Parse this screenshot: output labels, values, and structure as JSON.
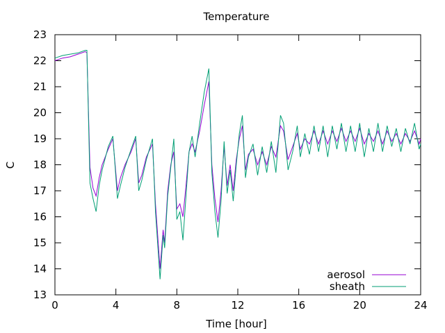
{
  "chart_data": {
    "type": "line",
    "title": "Temperature",
    "xlabel": "Time [hour]",
    "ylabel": "C",
    "xlim": [
      0,
      24
    ],
    "ylim": [
      13,
      23
    ],
    "xticks": [
      0,
      4,
      8,
      12,
      16,
      20,
      24
    ],
    "yticks": [
      13,
      14,
      15,
      16,
      17,
      18,
      19,
      20,
      21,
      22,
      23
    ],
    "grid": false,
    "legend_position": "bottom-right",
    "series": [
      {
        "name": "aerosol",
        "color": "#9400d3",
        "x": [
          0,
          0.5,
          1.0,
          1.5,
          2.0,
          2.1,
          2.3,
          2.5,
          2.7,
          2.9,
          3.1,
          3.5,
          3.8,
          4.1,
          4.3,
          4.6,
          5.0,
          5.3,
          5.5,
          5.7,
          6.0,
          6.4,
          6.6,
          6.9,
          7.1,
          7.2,
          7.4,
          7.6,
          7.8,
          8.0,
          8.2,
          8.4,
          8.6,
          8.8,
          9.0,
          9.2,
          9.5,
          9.8,
          10.1,
          10.3,
          10.5,
          10.7,
          10.9,
          11.1,
          11.3,
          11.5,
          11.7,
          11.9,
          12.1,
          12.3,
          12.5,
          12.7,
          13.0,
          13.3,
          13.6,
          13.9,
          14.2,
          14.5,
          14.8,
          15.0,
          15.3,
          15.6,
          15.9,
          16.1,
          16.4,
          16.7,
          17.0,
          17.3,
          17.6,
          17.9,
          18.2,
          18.5,
          18.8,
          19.1,
          19.4,
          19.7,
          20.0,
          20.3,
          20.6,
          20.9,
          21.2,
          21.5,
          21.8,
          22.1,
          22.4,
          22.7,
          23.0,
          23.3,
          23.6,
          23.9,
          24.0
        ],
        "y": [
          22.0,
          22.1,
          22.15,
          22.25,
          22.35,
          22.3,
          17.9,
          17.1,
          16.8,
          17.5,
          18.0,
          18.6,
          19.0,
          17.0,
          17.5,
          18.0,
          18.5,
          19.0,
          17.3,
          17.6,
          18.3,
          18.8,
          16.5,
          14.0,
          15.5,
          15.0,
          17.0,
          18.0,
          18.5,
          16.3,
          16.5,
          16.0,
          17.2,
          18.5,
          18.8,
          18.5,
          19.3,
          20.3,
          21.2,
          18.0,
          16.7,
          15.8,
          17.0,
          18.7,
          17.2,
          18.0,
          17.0,
          18.2,
          19.0,
          19.5,
          17.8,
          18.4,
          18.6,
          18.0,
          18.5,
          18.0,
          18.7,
          18.3,
          19.5,
          19.3,
          18.2,
          18.7,
          19.2,
          18.6,
          19.0,
          18.8,
          19.3,
          18.8,
          19.3,
          18.8,
          19.3,
          18.9,
          19.4,
          18.9,
          19.3,
          18.9,
          19.4,
          18.8,
          19.2,
          18.9,
          19.3,
          18.8,
          19.3,
          18.9,
          19.2,
          18.8,
          19.2,
          18.9,
          19.3,
          18.8,
          19.0
        ]
      },
      {
        "name": "sheath",
        "color": "#009e73",
        "x": [
          0,
          0.5,
          1.0,
          1.5,
          2.0,
          2.1,
          2.3,
          2.5,
          2.7,
          2.9,
          3.1,
          3.5,
          3.8,
          4.1,
          4.3,
          4.6,
          5.0,
          5.3,
          5.5,
          5.7,
          6.0,
          6.4,
          6.6,
          6.9,
          7.1,
          7.2,
          7.4,
          7.6,
          7.8,
          8.0,
          8.2,
          8.4,
          8.6,
          8.8,
          9.0,
          9.2,
          9.5,
          9.8,
          10.1,
          10.3,
          10.5,
          10.7,
          10.9,
          11.1,
          11.3,
          11.5,
          11.7,
          11.9,
          12.1,
          12.3,
          12.5,
          12.7,
          13.0,
          13.3,
          13.6,
          13.9,
          14.2,
          14.5,
          14.8,
          15.0,
          15.3,
          15.6,
          15.9,
          16.1,
          16.4,
          16.7,
          17.0,
          17.3,
          17.6,
          17.9,
          18.2,
          18.5,
          18.8,
          19.1,
          19.4,
          19.7,
          20.0,
          20.3,
          20.6,
          20.9,
          21.2,
          21.5,
          21.8,
          22.1,
          22.4,
          22.7,
          23.0,
          23.3,
          23.6,
          23.9,
          24.0
        ],
        "y": [
          22.1,
          22.2,
          22.25,
          22.3,
          22.4,
          22.4,
          17.3,
          16.7,
          16.2,
          17.2,
          17.8,
          18.7,
          19.1,
          16.7,
          17.2,
          17.9,
          18.6,
          19.1,
          17.0,
          17.4,
          18.2,
          19.0,
          16.2,
          13.6,
          15.3,
          14.8,
          16.8,
          17.9,
          19.0,
          15.9,
          16.2,
          15.1,
          16.8,
          18.5,
          19.1,
          18.3,
          19.6,
          20.8,
          21.7,
          17.7,
          16.2,
          15.2,
          16.6,
          18.9,
          16.9,
          17.8,
          16.6,
          18.0,
          19.2,
          19.9,
          17.5,
          18.3,
          18.8,
          17.6,
          18.7,
          17.7,
          18.9,
          17.7,
          19.9,
          19.6,
          17.8,
          18.5,
          19.5,
          18.3,
          19.2,
          18.4,
          19.5,
          18.5,
          19.5,
          18.3,
          19.5,
          18.6,
          19.6,
          18.5,
          19.5,
          18.5,
          19.6,
          18.3,
          19.4,
          18.5,
          19.6,
          18.5,
          19.5,
          18.7,
          19.4,
          18.5,
          19.4,
          18.8,
          19.6,
          18.6,
          18.8
        ]
      }
    ]
  }
}
